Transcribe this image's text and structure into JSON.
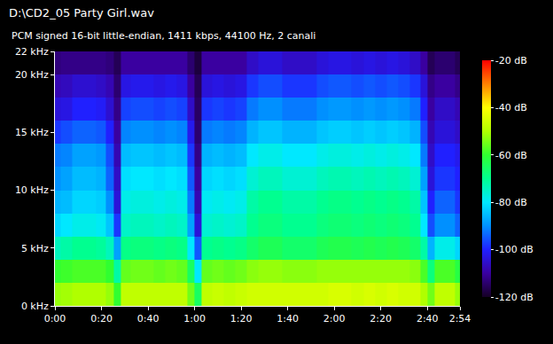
{
  "chart_data": {
    "type": "heatmap",
    "title": "D:\\CD2_05 Party Girl.wav",
    "subtitle": "PCM signed 16-bit little-endian, 1411 kbps, 44100 Hz, 2 canali",
    "x": [
      0,
      5,
      10,
      15,
      20,
      24,
      26.5,
      30,
      35,
      40,
      45,
      50,
      55,
      59,
      61,
      65,
      70,
      75,
      80,
      85,
      90,
      95,
      100,
      105,
      110,
      115,
      120,
      125,
      130,
      135,
      140,
      145,
      150,
      155,
      159,
      161,
      165,
      170,
      174
    ],
    "y": [
      1,
      3,
      5,
      7,
      9,
      11,
      13,
      15,
      17,
      19,
      21
    ],
    "cells": [
      [
        -52,
        -60,
        -74,
        -82,
        -86,
        -90,
        -92,
        -98,
        -104,
        -108,
        -113
      ],
      [
        -51,
        -59,
        -72,
        -80,
        -85,
        -88,
        -91,
        -96,
        -103,
        -107,
        -112
      ],
      [
        -50,
        -58,
        -70,
        -78,
        -82,
        -85,
        -88,
        -94,
        -100,
        -105,
        -112
      ],
      [
        -50,
        -58,
        -70,
        -78,
        -82,
        -85,
        -88,
        -94,
        -100,
        -105,
        -112
      ],
      [
        -50,
        -58,
        -71,
        -79,
        -83,
        -86,
        -89,
        -95,
        -101,
        -106,
        -112
      ],
      [
        -52,
        -60,
        -74,
        -84,
        -90,
        -94,
        -96,
        -100,
        -105,
        -108,
        -113
      ],
      [
        -60,
        -72,
        -88,
        -98,
        -104,
        -106,
        -108,
        -110,
        -112,
        -114,
        -116
      ],
      [
        -48,
        -56,
        -69,
        -75,
        -78,
        -81,
        -85,
        -91,
        -97,
        -103,
        -110
      ],
      [
        -48,
        -55,
        -68,
        -74,
        -77,
        -80,
        -84,
        -90,
        -96,
        -102,
        -110
      ],
      [
        -48,
        -55,
        -68,
        -74,
        -77,
        -80,
        -84,
        -90,
        -96,
        -102,
        -110
      ],
      [
        -48,
        -56,
        -69,
        -75,
        -78,
        -81,
        -85,
        -91,
        -97,
        -103,
        -110
      ],
      [
        -48,
        -55,
        -68,
        -74,
        -77,
        -80,
        -84,
        -90,
        -96,
        -102,
        -110
      ],
      [
        -48,
        -56,
        -69,
        -75,
        -78,
        -81,
        -85,
        -91,
        -97,
        -103,
        -110
      ],
      [
        -55,
        -65,
        -80,
        -88,
        -92,
        -95,
        -98,
        -102,
        -106,
        -110,
        -114
      ],
      [
        -65,
        -80,
        -95,
        -104,
        -108,
        -110,
        -112,
        -114,
        -115,
        -116,
        -118
      ],
      [
        -48,
        -56,
        -70,
        -76,
        -79,
        -82,
        -86,
        -92,
        -98,
        -104,
        -110
      ],
      [
        -47,
        -55,
        -69,
        -75,
        -78,
        -81,
        -85,
        -91,
        -97,
        -103,
        -110
      ],
      [
        -48,
        -56,
        -70,
        -76,
        -79,
        -82,
        -86,
        -92,
        -98,
        -104,
        -110
      ],
      [
        -47,
        -55,
        -69,
        -75,
        -78,
        -81,
        -85,
        -91,
        -97,
        -103,
        -110
      ],
      [
        -46,
        -53,
        -66,
        -70,
        -72,
        -76,
        -80,
        -86,
        -92,
        -98,
        -106
      ],
      [
        -46,
        -52,
        -64,
        -68,
        -70,
        -74,
        -78,
        -84,
        -90,
        -96,
        -104
      ],
      [
        -46,
        -52,
        -64,
        -68,
        -70,
        -74,
        -78,
        -84,
        -90,
        -96,
        -104
      ],
      [
        -46,
        -53,
        -66,
        -70,
        -72,
        -76,
        -80,
        -86,
        -92,
        -98,
        -106
      ],
      [
        -46,
        -53,
        -66,
        -70,
        -72,
        -76,
        -80,
        -86,
        -92,
        -98,
        -106
      ],
      [
        -46,
        -53,
        -66,
        -70,
        -72,
        -76,
        -80,
        -86,
        -92,
        -98,
        -106
      ],
      [
        -46,
        -52,
        -64,
        -68,
        -70,
        -74,
        -78,
        -84,
        -90,
        -96,
        -104
      ],
      [
        -45,
        -52,
        -63,
        -67,
        -69,
        -73,
        -77,
        -83,
        -89,
        -95,
        -103
      ],
      [
        -45,
        -52,
        -63,
        -67,
        -69,
        -73,
        -77,
        -83,
        -89,
        -95,
        -103
      ],
      [
        -46,
        -52,
        -64,
        -68,
        -70,
        -74,
        -78,
        -84,
        -90,
        -96,
        -104
      ],
      [
        -45,
        -52,
        -63,
        -67,
        -69,
        -73,
        -77,
        -83,
        -89,
        -95,
        -103
      ],
      [
        -46,
        -52,
        -64,
        -68,
        -70,
        -74,
        -78,
        -84,
        -90,
        -96,
        -104
      ],
      [
        -45,
        -52,
        -63,
        -67,
        -69,
        -73,
        -77,
        -83,
        -89,
        -95,
        -103
      ],
      [
        -46,
        -52,
        -64,
        -68,
        -70,
        -74,
        -78,
        -84,
        -90,
        -96,
        -104
      ],
      [
        -46,
        -53,
        -66,
        -70,
        -72,
        -76,
        -80,
        -86,
        -92,
        -98,
        -106
      ],
      [
        -50,
        -58,
        -72,
        -80,
        -84,
        -88,
        -92,
        -96,
        -100,
        -104,
        -110
      ],
      [
        -55,
        -68,
        -86,
        -96,
        -100,
        -104,
        -106,
        -108,
        -110,
        -112,
        -116
      ],
      [
        -48,
        -58,
        -78,
        -90,
        -94,
        -98,
        -100,
        -104,
        -106,
        -110,
        -114
      ],
      [
        -48,
        -58,
        -78,
        -90,
        -94,
        -98,
        -100,
        -104,
        -106,
        -110,
        -114
      ],
      [
        -52,
        -62,
        -82,
        -94,
        -98,
        -100,
        -102,
        -106,
        -108,
        -112,
        -116
      ]
    ],
    "xlim": [
      0,
      174
    ],
    "ylim": [
      0,
      22
    ],
    "xticks": [
      {
        "value": 0,
        "label": "0:00"
      },
      {
        "value": 20,
        "label": "0:20"
      },
      {
        "value": 40,
        "label": "0:40"
      },
      {
        "value": 60,
        "label": "1:00"
      },
      {
        "value": 80,
        "label": "1:20"
      },
      {
        "value": 100,
        "label": "1:40"
      },
      {
        "value": 120,
        "label": "2:00"
      },
      {
        "value": 140,
        "label": "2:20"
      },
      {
        "value": 160,
        "label": "2:40"
      },
      {
        "value": 174,
        "label": "2:54"
      }
    ],
    "yticks": [
      {
        "value": 0,
        "label": "0 kHz"
      },
      {
        "value": 5,
        "label": "5 kHz"
      },
      {
        "value": 10,
        "label": "10 kHz"
      },
      {
        "value": 15,
        "label": "15 kHz"
      },
      {
        "value": 20,
        "label": "20 kHz"
      },
      {
        "value": 22,
        "label": "22 kHz"
      }
    ],
    "colorbar": {
      "range": [
        -120,
        -20
      ],
      "ticks": [
        {
          "value": -20,
          "label": "-20 dB"
        },
        {
          "value": -40,
          "label": "-40 dB"
        },
        {
          "value": -60,
          "label": "-60 dB"
        },
        {
          "value": -80,
          "label": "-80 dB"
        },
        {
          "value": -100,
          "label": "-100 dB"
        },
        {
          "value": -120,
          "label": "-120 dB"
        }
      ]
    },
    "grid": false
  }
}
